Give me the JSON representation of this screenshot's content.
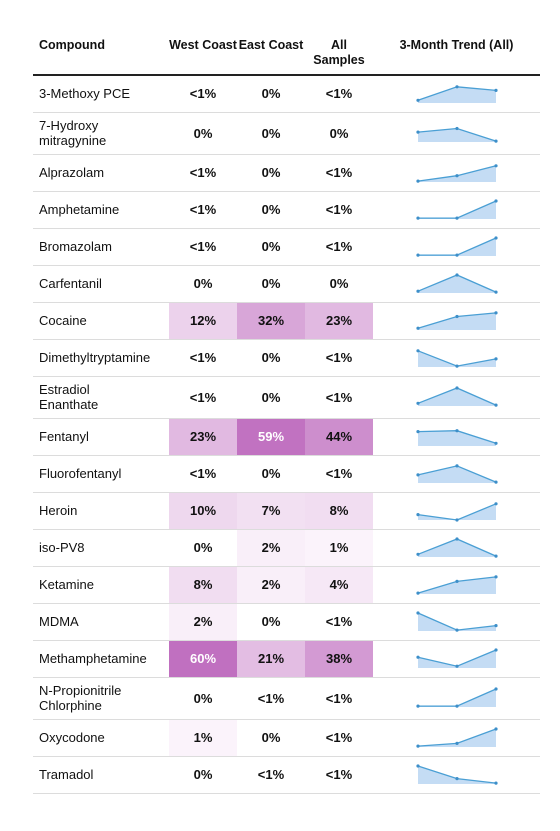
{
  "chart_data": {
    "type": "table",
    "columns": [
      "Compound",
      "West Coast",
      "East Coast",
      "All Samples",
      "3-Month Trend (All)"
    ],
    "rows": [
      {
        "compound": "3-Methoxy PCE",
        "west": "<1%",
        "east": "0%",
        "all": "<1%",
        "west_pct": 0.3,
        "east_pct": 0,
        "all_pct": 0.2,
        "trend": [
          0.15,
          0.9,
          0.7
        ]
      },
      {
        "compound": "7-Hydroxy mitragynine",
        "west": "0%",
        "east": "0%",
        "all": "0%",
        "west_pct": 0,
        "east_pct": 0,
        "all_pct": 0,
        "trend": [
          0.55,
          0.75,
          0.05
        ]
      },
      {
        "compound": "Alprazolam",
        "west": "<1%",
        "east": "0%",
        "all": "<1%",
        "west_pct": 0.3,
        "east_pct": 0,
        "all_pct": 0.2,
        "trend": [
          0.05,
          0.35,
          0.9
        ]
      },
      {
        "compound": "Amphetamine",
        "west": "<1%",
        "east": "0%",
        "all": "<1%",
        "west_pct": 0.3,
        "east_pct": 0,
        "all_pct": 0.2,
        "trend": [
          0.05,
          0.05,
          1.0
        ]
      },
      {
        "compound": "Bromazolam",
        "west": "<1%",
        "east": "0%",
        "all": "<1%",
        "west_pct": 0.3,
        "east_pct": 0,
        "all_pct": 0.2,
        "trend": [
          0.05,
          0.05,
          1.0
        ]
      },
      {
        "compound": "Carfentanil",
        "west": "0%",
        "east": "0%",
        "all": "0%",
        "west_pct": 0,
        "east_pct": 0,
        "all_pct": 0,
        "trend": [
          0.1,
          1.0,
          0.05
        ]
      },
      {
        "compound": "Cocaine",
        "west": "12%",
        "east": "32%",
        "all": "23%",
        "west_pct": 12,
        "east_pct": 32,
        "all_pct": 23,
        "trend": [
          0.1,
          0.75,
          0.95
        ]
      },
      {
        "compound": "Dimethyltryptamine",
        "west": "<1%",
        "east": "0%",
        "all": "<1%",
        "west_pct": 0.3,
        "east_pct": 0,
        "all_pct": 0.2,
        "trend": [
          0.9,
          0.05,
          0.45
        ]
      },
      {
        "compound": "Estradiol Enanthate",
        "west": "<1%",
        "east": "0%",
        "all": "<1%",
        "west_pct": 0.3,
        "east_pct": 0,
        "all_pct": 0.2,
        "trend": [
          0.15,
          1.0,
          0.05
        ]
      },
      {
        "compound": "Fentanyl",
        "west": "23%",
        "east": "59%",
        "all": "44%",
        "west_pct": 23,
        "east_pct": 59,
        "all_pct": 44,
        "trend": [
          0.8,
          0.85,
          0.15
        ]
      },
      {
        "compound": "Fluorofentanyl",
        "west": "<1%",
        "east": "0%",
        "all": "<1%",
        "west_pct": 0.3,
        "east_pct": 0,
        "all_pct": 0.2,
        "trend": [
          0.45,
          0.95,
          0.05
        ]
      },
      {
        "compound": "Heroin",
        "west": "10%",
        "east": "7%",
        "all": "8%",
        "west_pct": 10,
        "east_pct": 7,
        "all_pct": 8,
        "trend": [
          0.3,
          0.0,
          0.9
        ]
      },
      {
        "compound": "iso-PV8",
        "west": "0%",
        "east": "2%",
        "all": "1%",
        "west_pct": 0,
        "east_pct": 2,
        "all_pct": 1,
        "trend": [
          0.15,
          1.0,
          0.05
        ]
      },
      {
        "compound": "Ketamine",
        "west": "8%",
        "east": "2%",
        "all": "4%",
        "west_pct": 8,
        "east_pct": 2,
        "all_pct": 4,
        "trend": [
          0.05,
          0.7,
          0.95
        ]
      },
      {
        "compound": "MDMA",
        "west": "2%",
        "east": "0%",
        "all": "<1%",
        "west_pct": 2,
        "east_pct": 0,
        "all_pct": 0.5,
        "trend": [
          1.0,
          0.05,
          0.3
        ]
      },
      {
        "compound": "Methamphetamine",
        "west": "60%",
        "east": "21%",
        "all": "38%",
        "west_pct": 60,
        "east_pct": 21,
        "all_pct": 38,
        "trend": [
          0.6,
          0.1,
          1.0
        ]
      },
      {
        "compound": "N-Propionitrile Chlorphine",
        "west": "0%",
        "east": "<1%",
        "all": "<1%",
        "west_pct": 0,
        "east_pct": 0.3,
        "all_pct": 0.2,
        "trend": [
          0.05,
          0.05,
          1.0
        ]
      },
      {
        "compound": "Oxycodone",
        "west": "1%",
        "east": "0%",
        "all": "<1%",
        "west_pct": 1,
        "east_pct": 0,
        "all_pct": 0.5,
        "trend": [
          0.05,
          0.2,
          1.0
        ]
      },
      {
        "compound": "Tramadol",
        "west": "0%",
        "east": "<1%",
        "all": "<1%",
        "west_pct": 0,
        "east_pct": 0.3,
        "all_pct": 0.2,
        "trend": [
          1.0,
          0.3,
          0.05
        ]
      }
    ]
  },
  "header": {
    "compound": "Compound",
    "west": "West Coast",
    "east": "East Coast",
    "all": "All Samples",
    "trend": "3-Month Trend (All)"
  },
  "colors": {
    "heat_max": "#c070c0",
    "heat_min": "#fdf8fd",
    "spark_line": "#4a9fd4",
    "spark_fill": "#c4dcf4",
    "spark_point": "#3d8fc9"
  }
}
